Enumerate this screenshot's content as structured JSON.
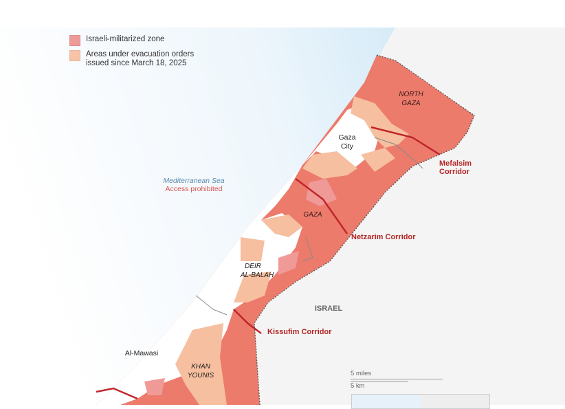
{
  "legend": {
    "items": [
      {
        "label": "Israeli-militarized zone",
        "color": "#ee9a98"
      },
      {
        "label": "Areas under evacuation orders issued since March 18, 2025",
        "color": "#f8c4a8"
      }
    ]
  },
  "colors": {
    "militarized": "#ec7b6c",
    "evacuation": "#f6bfa0",
    "sea": "#e1f0fa",
    "corridor_label": "#b52424",
    "land": "#f3f3f3"
  },
  "sea": {
    "name": "Mediterranean Sea",
    "note": "Access prohibited"
  },
  "regions": {
    "north_gaza": "NORTH GAZA",
    "gaza": "GAZA",
    "deir": "DEIR AL-BALAH",
    "khan": "KHAN YOUNIS"
  },
  "places": {
    "gaza_city": "Gaza City",
    "al_mawasi": "Al-Mawasi",
    "israel": "ISRAEL"
  },
  "corridors": {
    "mefalsim": "Mefalsim Corridor",
    "netzarim": "Netzarim Corridor",
    "kissufim": "Kissufim Corridor"
  },
  "scale": {
    "miles": "5 miles",
    "km": "5 km"
  }
}
